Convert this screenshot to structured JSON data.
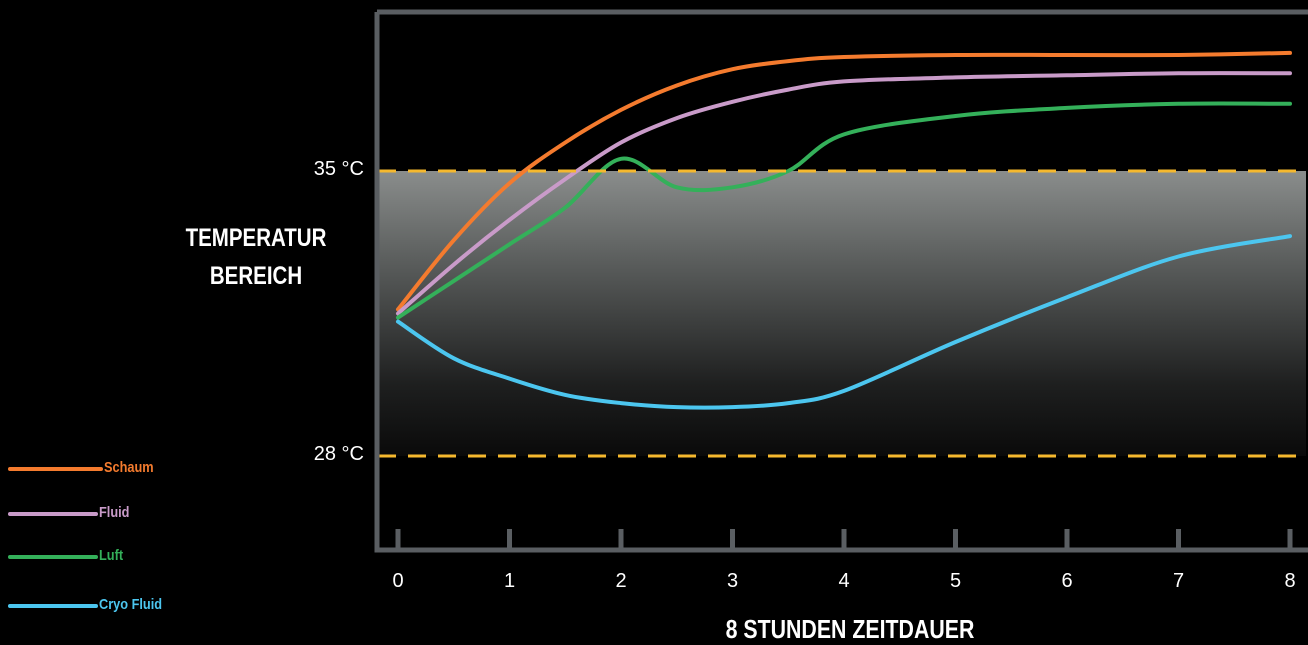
{
  "chart_data": {
    "type": "line",
    "xlabel": "8 STUNDEN ZEITDAUER",
    "ylabel_lines": [
      "TEMPERATUR",
      "BEREICH"
    ],
    "x": [
      0,
      0.5,
      1,
      1.5,
      2,
      2.5,
      3,
      3.5,
      4,
      5,
      6,
      7,
      8
    ],
    "xticks": [
      "0",
      "1",
      "2",
      "3",
      "4",
      "5",
      "6",
      "7",
      "8"
    ],
    "xlim": [
      0,
      8
    ],
    "ylim": [
      25.5,
      38.5
    ],
    "yticks": [
      {
        "value": 35,
        "label": "35 °C"
      },
      {
        "value": 28,
        "label": "28 °C"
      }
    ],
    "band": {
      "from": 28,
      "to": 35
    },
    "series": [
      {
        "name": "Schaum",
        "color": "#F47B2E",
        "values": [
          31.6,
          33.3,
          34.7,
          35.7,
          36.5,
          37.1,
          37.5,
          37.7,
          37.8,
          37.85,
          37.85,
          37.85,
          37.9
        ]
      },
      {
        "name": "Fluid",
        "color": "#C99BC9",
        "values": [
          31.5,
          32.7,
          33.8,
          34.8,
          35.7,
          36.3,
          36.7,
          37.0,
          37.2,
          37.3,
          37.35,
          37.4,
          37.4
        ]
      },
      {
        "name": "Luft",
        "color": "#34B05A",
        "values": [
          31.4,
          32.3,
          33.2,
          34.1,
          35.3,
          34.6,
          34.6,
          35.0,
          35.9,
          36.35,
          36.55,
          36.65,
          36.65
        ]
      },
      {
        "name": "Cryo Fluid",
        "color": "#4CC6EF",
        "values": [
          31.3,
          30.4,
          29.9,
          29.5,
          29.3,
          29.2,
          29.2,
          29.3,
          29.6,
          30.8,
          31.9,
          32.9,
          33.4
        ]
      }
    ]
  },
  "legend_color_band": "#F5B82E"
}
